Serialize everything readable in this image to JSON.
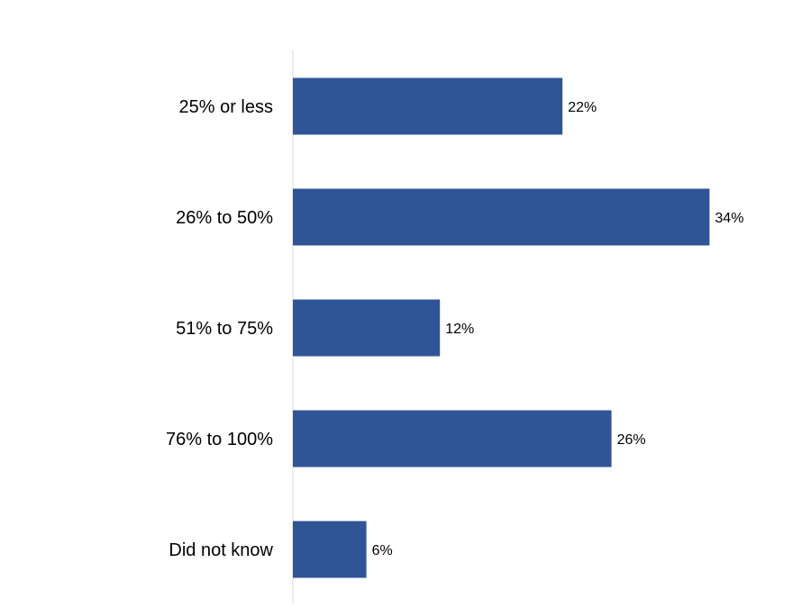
{
  "chart_data": {
    "type": "bar",
    "orientation": "horizontal",
    "categories": [
      "25% or less",
      "26% to 50%",
      "51% to 75%",
      "76% to 100%",
      "Did not know"
    ],
    "values": [
      22,
      34,
      12,
      26,
      6
    ],
    "value_labels": [
      "22%",
      "34%",
      "12%",
      "26%",
      "6%"
    ],
    "unit": "%",
    "xlim": [
      0,
      40
    ],
    "grid": false,
    "legend": "none",
    "title": "",
    "xlabel": "",
    "ylabel": "",
    "colors": {
      "bar": "#2F5597",
      "axis": "#D9D9D9",
      "text": "#000000"
    }
  }
}
